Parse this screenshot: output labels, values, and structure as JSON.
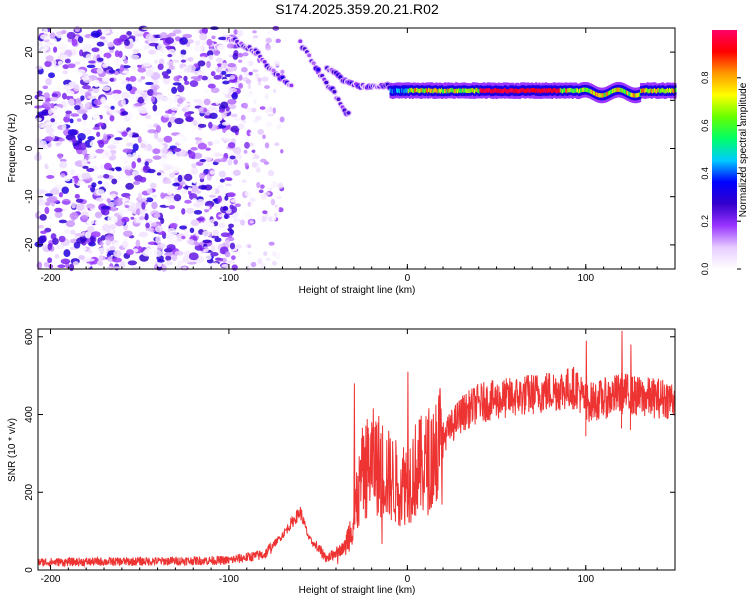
{
  "title": "S174.2025.359.20.21.R02",
  "chart_data": [
    {
      "type": "heatmap",
      "xlabel": "Height of straight line (km)",
      "ylabel": "Frequency (Hz)",
      "xlim": [
        -207,
        150
      ],
      "ylim": [
        -25,
        25
      ],
      "xticks": [
        -200,
        -100,
        0,
        100
      ],
      "yticks": [
        20,
        10,
        0,
        -10,
        -20
      ],
      "colorbar": {
        "label": "Normalized spectral amplitude",
        "range": [
          0,
          1
        ],
        "ticks": [
          "0.0",
          "0.2",
          "0.4",
          "0.6",
          "0.8"
        ],
        "colormap": [
          "#ffffff",
          "#e6ccff",
          "#9933ff",
          "#3300cc",
          "#0000ff",
          "#00ccff",
          "#00ff66",
          "#66ff00",
          "#ffff00",
          "#ff9900",
          "#ff0000",
          "#ff0066"
        ]
      },
      "features": {
        "noise_region_x": [
          -207,
          -95
        ],
        "sparse_noise_region_x": [
          -95,
          -70
        ],
        "descending_tracks": [
          {
            "points": [
              [
                -100,
                23
              ],
              [
                -85,
                20
              ],
              [
                -75,
                16
              ],
              [
                -65,
                13
              ]
            ]
          },
          {
            "points": [
              [
                -60,
                22
              ],
              [
                -50,
                16
              ],
              [
                -42,
                12
              ],
              [
                -33,
                7
              ]
            ]
          },
          {
            "points": [
              [
                -45,
                17
              ],
              [
                -35,
                14
              ],
              [
                -25,
                13
              ],
              [
                -10,
                13
              ]
            ]
          }
        ],
        "steady_line": {
          "x_start": -10,
          "x_end": 150,
          "frequency": 12,
          "peak_amplitude_region_x": [
            40,
            85
          ]
        }
      }
    },
    {
      "type": "line",
      "xlabel": "Height of straight line (km)",
      "ylabel": "SNR (10 * v/v)",
      "xlim": [
        -207,
        150
      ],
      "ylim": [
        0,
        620
      ],
      "xticks": [
        -200,
        -100,
        0,
        100
      ],
      "yticks": [
        0,
        200,
        400,
        600
      ],
      "color": "#ee3333",
      "envelope": [
        [
          -207,
          20
        ],
        [
          -150,
          22
        ],
        [
          -100,
          25
        ],
        [
          -80,
          40
        ],
        [
          -70,
          90
        ],
        [
          -60,
          150
        ],
        [
          -55,
          80
        ],
        [
          -45,
          30
        ],
        [
          -35,
          60
        ],
        [
          -30,
          130
        ],
        [
          -25,
          250
        ],
        [
          -20,
          280
        ],
        [
          -15,
          270
        ],
        [
          -10,
          240
        ],
        [
          -5,
          220
        ],
        [
          0,
          230
        ],
        [
          5,
          260
        ],
        [
          10,
          270
        ],
        [
          20,
          340
        ],
        [
          30,
          400
        ],
        [
          40,
          430
        ],
        [
          60,
          445
        ],
        [
          80,
          460
        ],
        [
          95,
          470
        ],
        [
          100,
          430
        ],
        [
          110,
          440
        ],
        [
          120,
          455
        ],
        [
          130,
          445
        ],
        [
          150,
          440
        ]
      ],
      "spikes": [
        [
          -30,
          480
        ],
        [
          0,
          510
        ],
        [
          -22,
          350
        ],
        [
          100,
          590
        ],
        [
          120,
          615
        ],
        [
          125,
          580
        ]
      ]
    }
  ]
}
